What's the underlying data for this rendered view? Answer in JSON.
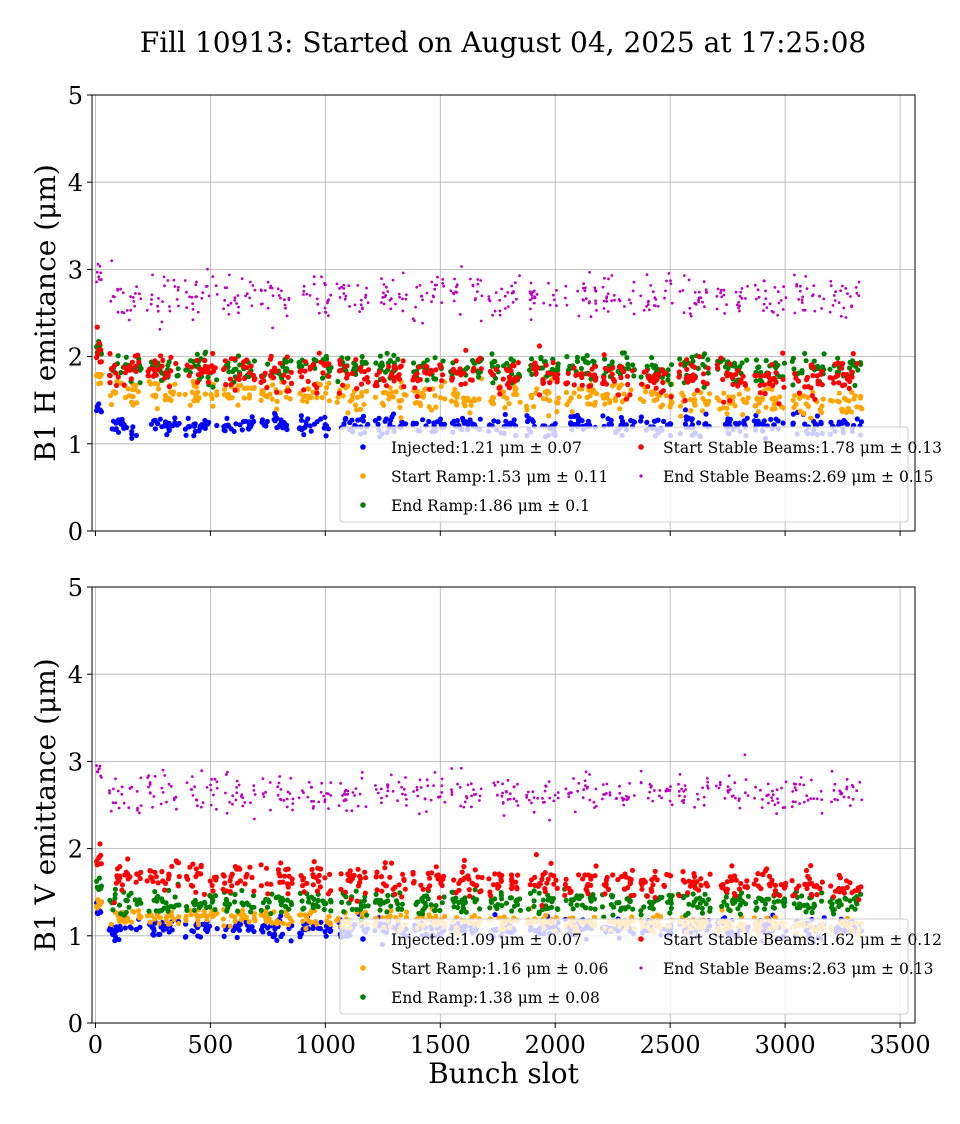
{
  "title": "Fill 10913: Started on August 04, 2025 at 17:25:08",
  "chart_data": [
    {
      "type": "scatter",
      "ylabel": "B1 H emittance (μm)",
      "xlabel": "",
      "xlim": [
        -15,
        3565
      ],
      "ylim": [
        0,
        5
      ],
      "xticks": [
        "0",
        "500",
        "1000",
        "1500",
        "2000",
        "2500",
        "3000",
        "3500"
      ],
      "yticks": [
        "0",
        "1",
        "2",
        "3",
        "4",
        "5"
      ],
      "grid": true,
      "legend_placement": "lower-right",
      "series": [
        {
          "name": "Injected",
          "label": "Injected:1.21 μm ± 0.07",
          "mean": 1.21,
          "std": 0.07,
          "color": "#0000ff"
        },
        {
          "name": "Start Ramp",
          "label": "Start Ramp:1.53 μm ± 0.11",
          "mean": 1.53,
          "std": 0.11,
          "color": "#ffa500"
        },
        {
          "name": "End Ramp",
          "label": "End Ramp:1.86 μm ± 0.1",
          "mean": 1.86,
          "std": 0.1,
          "color": "#008000"
        },
        {
          "name": "Start Stable Beams",
          "label": "Start Stable Beams:1.78 μm ± 0.13",
          "mean": 1.78,
          "std": 0.13,
          "color": "#ff0000"
        },
        {
          "name": "End Stable Beams",
          "label": "End Stable Beams:2.69 μm ± 0.15",
          "mean": 2.69,
          "std": 0.15,
          "color": "#bf00bf"
        }
      ]
    },
    {
      "type": "scatter",
      "ylabel": "B1 V emittance (μm)",
      "xlabel": "Bunch slot",
      "xlim": [
        -15,
        3565
      ],
      "ylim": [
        0,
        5
      ],
      "xticks": [
        "0",
        "500",
        "1000",
        "1500",
        "2000",
        "2500",
        "3000",
        "3500"
      ],
      "yticks": [
        "0",
        "1",
        "2",
        "3",
        "4",
        "5"
      ],
      "grid": true,
      "legend_placement": "lower-right",
      "series": [
        {
          "name": "Injected",
          "label": "Injected:1.09 μm ± 0.07",
          "mean": 1.09,
          "std": 0.07,
          "color": "#0000ff"
        },
        {
          "name": "Start Ramp",
          "label": "Start Ramp:1.16 μm ± 0.06",
          "mean": 1.16,
          "std": 0.06,
          "color": "#ffa500"
        },
        {
          "name": "End Ramp",
          "label": "End Ramp:1.38 μm ± 0.08",
          "mean": 1.38,
          "std": 0.08,
          "color": "#008000"
        },
        {
          "name": "Start Stable Beams",
          "label": "Start Stable Beams:1.62 μm ± 0.12",
          "mean": 1.62,
          "std": 0.12,
          "color": "#ff0000"
        },
        {
          "name": "End Stable Beams",
          "label": "End Stable Beams:2.63 μm ± 0.13",
          "mean": 2.63,
          "std": 0.13,
          "color": "#bf00bf"
        }
      ]
    }
  ]
}
